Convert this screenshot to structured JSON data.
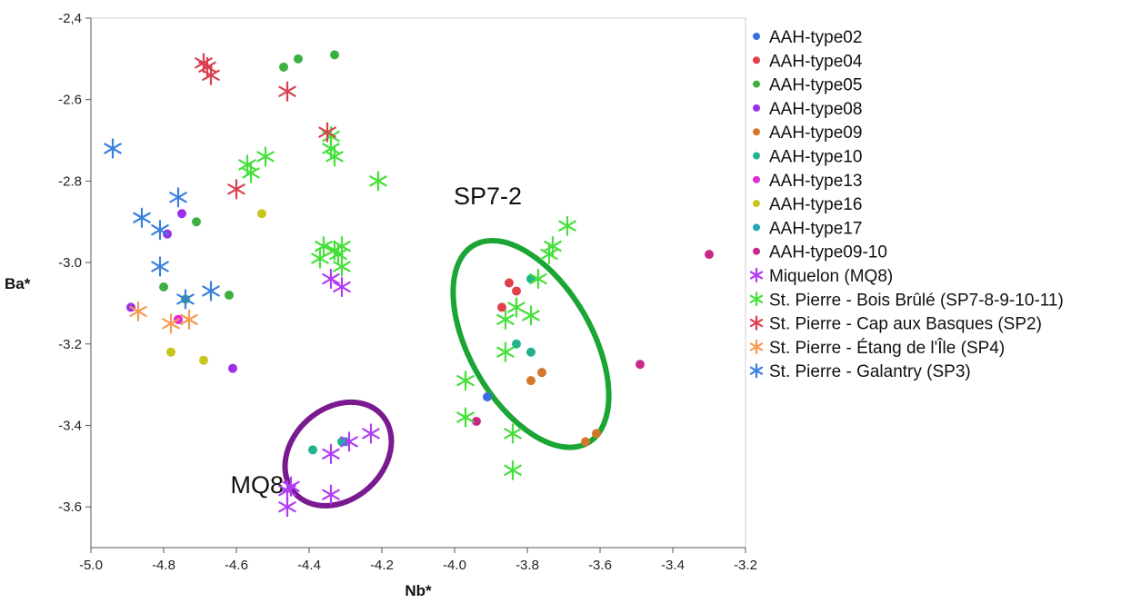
{
  "chart_data": {
    "type": "scatter",
    "xlabel": "Nb*",
    "ylabel": "Ba*",
    "xlim": [
      -5.0,
      -3.2
    ],
    "ylim": [
      -3.7,
      -2.4
    ],
    "x_ticks": [
      -5.0,
      -4.8,
      -4.6,
      -4.4,
      -4.2,
      -4.0,
      -3.8,
      -3.6,
      -3.4,
      -3.2
    ],
    "x_tick_labels": [
      "-5.0",
      "-4.8",
      "-4.6",
      "-4.4",
      "-4.2",
      "-4.0",
      "-3.8",
      "-3.6",
      "-3.4",
      "-3.2"
    ],
    "y_ticks": [
      -2.4,
      -2.6,
      -2.8,
      -3.0,
      -3.2,
      -3.4,
      -3.6
    ],
    "y_tick_labels": [
      "-2,4",
      "-2.6",
      "-2.8",
      "-3.0",
      "-3.2",
      "-3.4",
      "-3.6"
    ],
    "grid": false,
    "legend_position": "right",
    "series": [
      {
        "name": "AAH-type02",
        "marker": "dot",
        "color": "#3b6fe0",
        "points": [
          [
            -3.91,
            -3.33
          ]
        ]
      },
      {
        "name": "AAH-type04",
        "marker": "dot",
        "color": "#e0404a",
        "points": [
          [
            -3.85,
            -3.05
          ],
          [
            -3.83,
            -3.07
          ],
          [
            -3.87,
            -3.11
          ]
        ]
      },
      {
        "name": "AAH-type05",
        "marker": "dot",
        "color": "#3cb043",
        "points": [
          [
            -4.47,
            -2.52
          ],
          [
            -4.43,
            -2.5
          ],
          [
            -4.33,
            -2.49
          ],
          [
            -4.71,
            -2.9
          ],
          [
            -4.8,
            -3.06
          ],
          [
            -4.62,
            -3.08
          ],
          [
            -4.74,
            -3.09
          ]
        ]
      },
      {
        "name": "AAH-type08",
        "marker": "dot",
        "color": "#9b30e8",
        "points": [
          [
            -4.75,
            -2.88
          ],
          [
            -4.79,
            -2.93
          ],
          [
            -4.89,
            -3.11
          ],
          [
            -4.61,
            -3.26
          ],
          [
            -4.76,
            -3.14
          ]
        ]
      },
      {
        "name": "AAH-type09",
        "marker": "dot",
        "color": "#d2772b",
        "points": [
          [
            -3.76,
            -3.27
          ],
          [
            -3.79,
            -3.29
          ],
          [
            -3.61,
            -3.42
          ],
          [
            -3.64,
            -3.44
          ]
        ]
      },
      {
        "name": "AAH-type10",
        "marker": "dot",
        "color": "#21b28e",
        "points": [
          [
            -3.79,
            -3.04
          ],
          [
            -3.83,
            -3.2
          ],
          [
            -3.79,
            -3.22
          ],
          [
            -4.39,
            -3.46
          ],
          [
            -4.31,
            -3.44
          ]
        ]
      },
      {
        "name": "AAH-type13",
        "marker": "dot",
        "color": "#e02ad8",
        "points": [
          [
            -4.76,
            -3.14
          ]
        ]
      },
      {
        "name": "AAH-type16",
        "marker": "dot",
        "color": "#c9c41b",
        "points": [
          [
            -4.53,
            -2.88
          ],
          [
            -4.78,
            -3.22
          ],
          [
            -4.69,
            -3.24
          ]
        ]
      },
      {
        "name": "AAH-type17",
        "marker": "dot",
        "color": "#1fa8b5",
        "points": [
          [
            -4.3,
            -3.44
          ]
        ]
      },
      {
        "name": "AAH-type09-10",
        "marker": "dot",
        "color": "#c8288a",
        "points": [
          [
            -3.3,
            -2.98
          ],
          [
            -3.49,
            -3.25
          ],
          [
            -3.94,
            -3.39
          ]
        ]
      },
      {
        "name": "Miquelon (MQ8)",
        "marker": "asterisk",
        "color": "#b13cf5",
        "points": [
          [
            -4.34,
            -3.04
          ],
          [
            -4.31,
            -3.06
          ],
          [
            -4.23,
            -3.42
          ],
          [
            -4.29,
            -3.44
          ],
          [
            -4.34,
            -3.47
          ],
          [
            -4.45,
            -3.55
          ],
          [
            -4.46,
            -3.56
          ],
          [
            -4.34,
            -3.57
          ],
          [
            -4.46,
            -3.6
          ]
        ]
      },
      {
        "name": "St. Pierre - Bois Brûlé (SP7-8-9-10-11)",
        "marker": "asterisk",
        "color": "#45e03a",
        "points": [
          [
            -4.34,
            -2.69
          ],
          [
            -4.34,
            -2.72
          ],
          [
            -4.33,
            -2.74
          ],
          [
            -4.52,
            -2.74
          ],
          [
            -4.57,
            -2.76
          ],
          [
            -4.56,
            -2.78
          ],
          [
            -4.21,
            -2.8
          ],
          [
            -4.36,
            -2.96
          ],
          [
            -4.33,
            -2.97
          ],
          [
            -4.31,
            -2.96
          ],
          [
            -4.32,
            -2.98
          ],
          [
            -4.37,
            -2.99
          ],
          [
            -4.31,
            -3.01
          ],
          [
            -3.69,
            -2.91
          ],
          [
            -3.73,
            -2.96
          ],
          [
            -3.74,
            -2.98
          ],
          [
            -3.77,
            -3.04
          ],
          [
            -3.83,
            -3.11
          ],
          [
            -3.79,
            -3.13
          ],
          [
            -3.86,
            -3.14
          ],
          [
            -3.86,
            -3.22
          ],
          [
            -3.97,
            -3.29
          ],
          [
            -3.97,
            -3.38
          ],
          [
            -3.84,
            -3.42
          ],
          [
            -3.84,
            -3.51
          ]
        ]
      },
      {
        "name": "St. Pierre - Cap aux Basques (SP2)",
        "marker": "asterisk",
        "color": "#d94050",
        "points": [
          [
            -4.69,
            -2.51
          ],
          [
            -4.68,
            -2.52
          ],
          [
            -4.67,
            -2.54
          ],
          [
            -4.46,
            -2.58
          ],
          [
            -4.35,
            -2.68
          ],
          [
            -4.6,
            -2.82
          ]
        ]
      },
      {
        "name": "St. Pierre - Étang de l'Île (SP4)",
        "marker": "asterisk",
        "color": "#f59a52",
        "points": [
          [
            -4.87,
            -3.12
          ],
          [
            -4.78,
            -3.15
          ],
          [
            -4.73,
            -3.14
          ]
        ]
      },
      {
        "name": "St. Pierre - Galantry (SP3)",
        "marker": "asterisk",
        "color": "#3a7fdf",
        "points": [
          [
            -4.94,
            -2.72
          ],
          [
            -4.76,
            -2.84
          ],
          [
            -4.86,
            -2.89
          ],
          [
            -4.81,
            -2.92
          ],
          [
            -4.81,
            -3.01
          ],
          [
            -4.67,
            -3.07
          ],
          [
            -4.74,
            -3.09
          ]
        ]
      }
    ],
    "annotations": [
      {
        "label": "SP7-2",
        "color": "#1aa535",
        "ellipse": {
          "cx": -3.79,
          "cy": -3.2,
          "rx_data": 0.48,
          "ry_data": 0.4,
          "rotation": -30
        }
      },
      {
        "label": "MQ8",
        "color": "#7a1a90",
        "ellipse": {
          "cx": -4.32,
          "cy": -3.47,
          "rx_data": 0.46,
          "ry_data": 0.16,
          "rotation": -42
        }
      }
    ]
  }
}
